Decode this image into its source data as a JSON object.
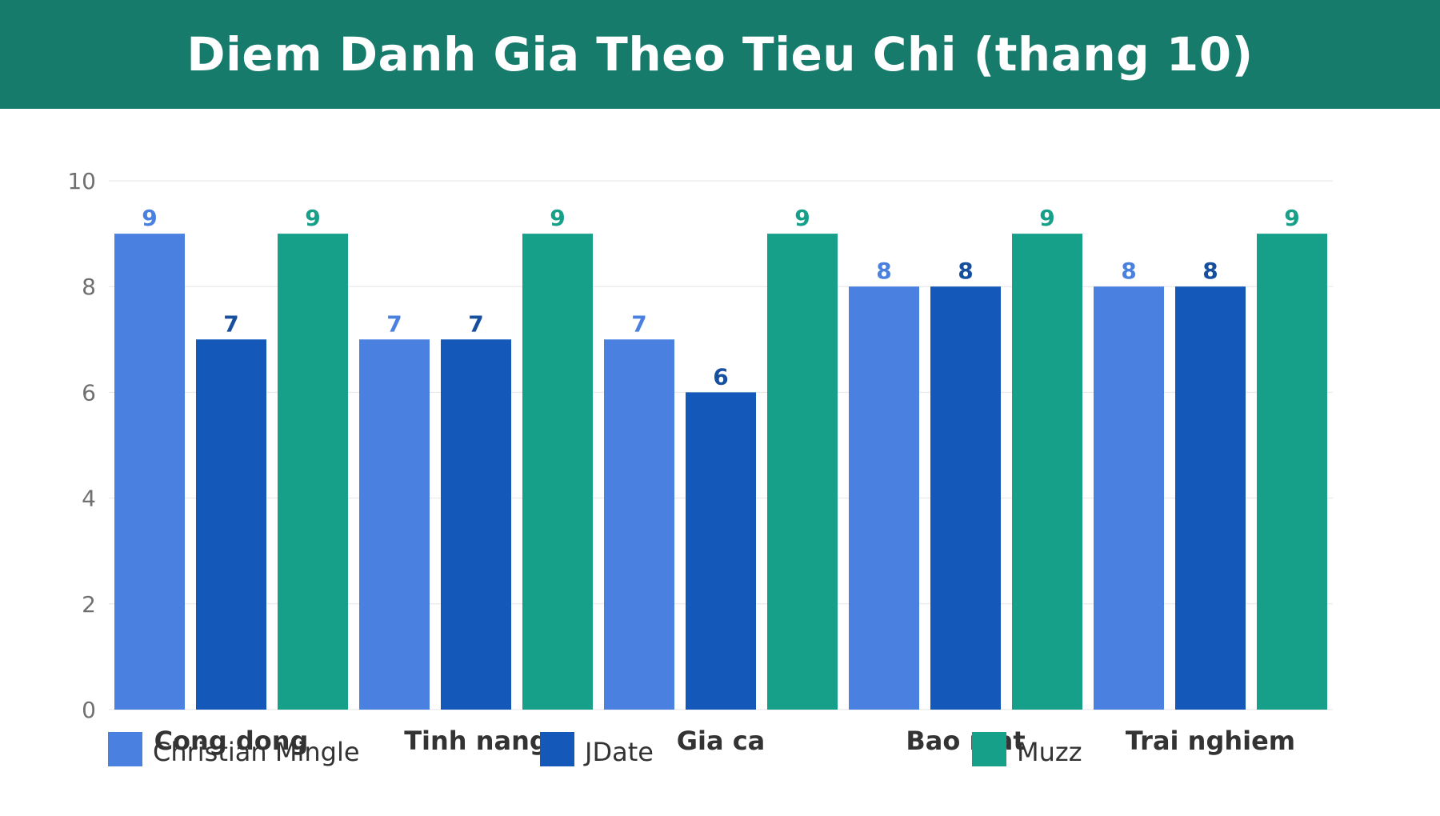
{
  "chart_data": {
    "type": "bar",
    "title": "Diem Danh Gia Theo Tieu Chi (thang 10)",
    "categories": [
      "Cong dong",
      "Tinh nang",
      "Gia ca",
      "Bao mat",
      "Trai nghiem"
    ],
    "series": [
      {
        "name": "Christian Mingle",
        "values": [
          9,
          7,
          7,
          8,
          8
        ],
        "color": "#4a80df",
        "label_color": "#4a80df"
      },
      {
        "name": "JDate",
        "values": [
          7,
          7,
          6,
          8,
          8
        ],
        "color": "#1459b9",
        "label_color": "#174f9f"
      },
      {
        "name": "Muzz",
        "values": [
          9,
          9,
          9,
          9,
          9
        ],
        "color": "#16a089",
        "label_color": "#16a089"
      }
    ],
    "y_ticks": [
      "0",
      "2",
      "4",
      "6",
      "8",
      "10"
    ],
    "ylim": [
      0,
      10
    ],
    "grid": true,
    "legend_position": "bottom-left",
    "colors": {
      "header": "#177b6c",
      "grid": "#e6e6e6",
      "tick": "#707070",
      "category": "#333333"
    }
  }
}
